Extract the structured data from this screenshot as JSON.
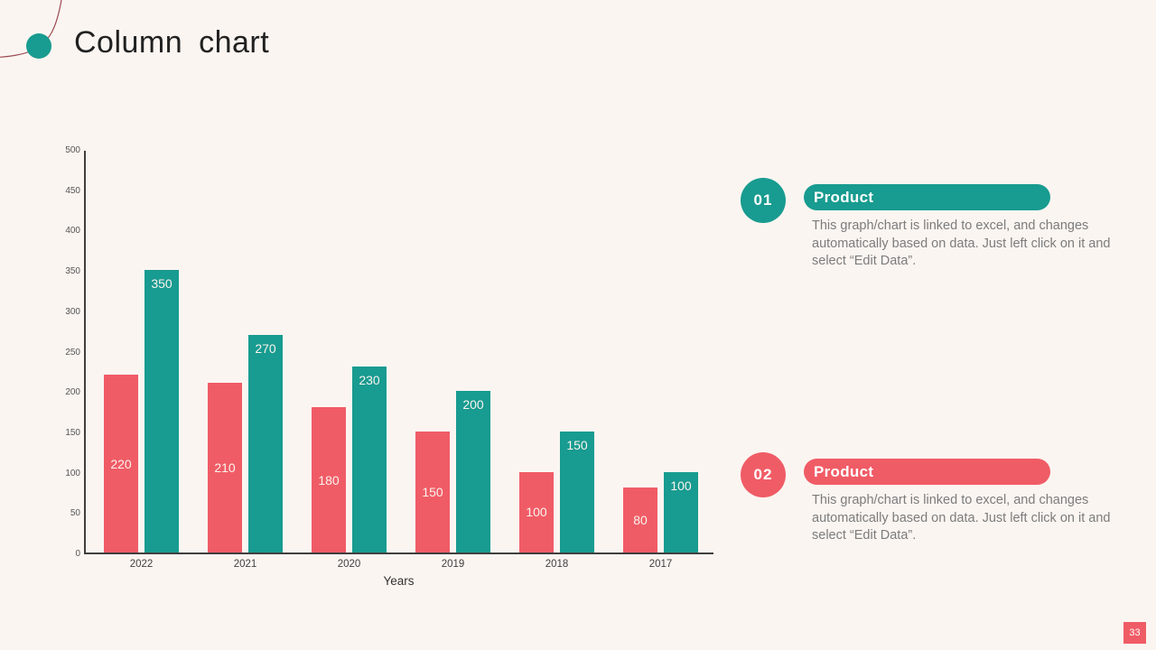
{
  "page": {
    "title": "Column chart",
    "page_number": "33",
    "background_color": "#FBF5F1",
    "accent_teal": "#189B90",
    "accent_red": "#F05C66",
    "deco_line_color": "#9B4A50"
  },
  "chart_data": {
    "type": "bar",
    "categories": [
      "2022",
      "2021",
      "2020",
      "2019",
      "2018",
      "2017"
    ],
    "series": [
      {
        "name": "Product 02",
        "color": "#F05C66",
        "values": [
          220,
          210,
          180,
          150,
          100,
          80
        ]
      },
      {
        "name": "Product 01",
        "color": "#189B90",
        "values": [
          350,
          270,
          230,
          200,
          150,
          100
        ]
      }
    ],
    "title": "",
    "xlabel": "Years",
    "ylabel": "",
    "ylim": [
      0,
      500
    ],
    "ytick_step": 50,
    "grid": false,
    "legend": false,
    "value_labels": true
  },
  "panels": [
    {
      "number": "01",
      "label": "Product",
      "color": "#189B90",
      "description": "This graph/chart is linked to excel, and changes automatically based on data. Just left click on it and select “Edit Data”."
    },
    {
      "number": "02",
      "label": "Product",
      "color": "#F05C66",
      "description": "This graph/chart is linked to excel, and changes automatically based on data. Just left click on it and select “Edit Data”."
    }
  ]
}
